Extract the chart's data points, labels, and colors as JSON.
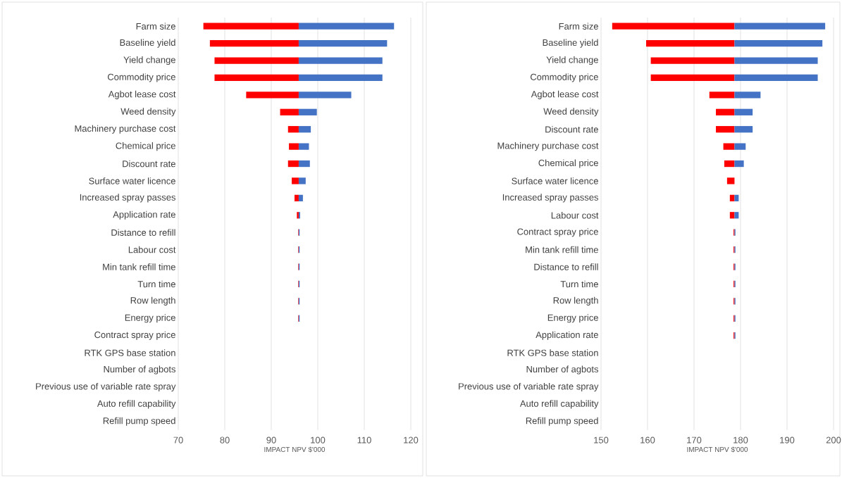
{
  "chart_data": [
    {
      "type": "bar",
      "orientation": "horizontal",
      "grid": "x",
      "xlabel": "IMPACT NPV $'000",
      "xlim": [
        70,
        120
      ],
      "xticks": [
        70,
        80,
        90,
        100,
        110,
        120
      ],
      "categories": [
        "Farm size",
        "Baseline yield",
        "Yield change",
        "Commodity price",
        "Agbot lease cost",
        "Weed density",
        "Machinery purchase cost",
        "Chemical price",
        "Discount rate",
        "Surface water licence",
        "Increased spray passes",
        "Application rate",
        "Distance to refill",
        "Labour cost",
        "Min tank refill time",
        "Turn time",
        "Row length",
        "Energy price",
        "Contract spray price",
        "RTK GPS base station",
        "Number of agbots",
        "Previous use of variable rate spray",
        "Auto refill capability",
        "Refill pump speed"
      ],
      "series": [
        {
          "color": "#ff0000",
          "base": [
            75.4,
            76.8,
            77.8,
            77.8,
            84.6,
            91.9,
            93.6,
            93.8,
            93.6,
            94.4,
            95.0,
            95.5,
            95.8,
            95.8,
            95.8,
            95.8,
            95.8,
            95.8,
            null,
            null,
            null,
            null,
            null,
            null
          ],
          "values": [
            20.5,
            19.1,
            18.1,
            18.1,
            11.3,
            4.0,
            2.3,
            2.1,
            2.3,
            1.5,
            0.9,
            0.4,
            0.1,
            0.1,
            0.1,
            0.1,
            0.1,
            0.1,
            null,
            null,
            null,
            null,
            null,
            null
          ]
        },
        {
          "color": "#4472c4",
          "base": [
            95.9,
            95.9,
            95.9,
            95.9,
            95.9,
            95.9,
            95.9,
            95.9,
            95.9,
            95.9,
            95.9,
            95.9,
            95.9,
            95.9,
            95.9,
            95.9,
            95.9,
            95.9,
            null,
            null,
            null,
            null,
            null,
            null
          ],
          "values": [
            20.5,
            19.0,
            18.0,
            18.0,
            11.3,
            3.9,
            2.6,
            2.2,
            2.4,
            1.5,
            0.9,
            0.3,
            0.2,
            0.2,
            0.2,
            0.2,
            0.2,
            0.2,
            null,
            null,
            null,
            null,
            null,
            null
          ]
        }
      ]
    },
    {
      "type": "bar",
      "orientation": "horizontal",
      "grid": "x",
      "xlabel": "IMPACT NPV $'000",
      "xlim": [
        150,
        200
      ],
      "xticks": [
        150,
        160,
        170,
        180,
        190,
        200
      ],
      "categories": [
        "Farm size",
        "Baseline yield",
        "Yield change",
        "Commodity price",
        "Agbot lease cost",
        "Weed density",
        "Discount rate",
        "Machinery purchase cost",
        "Chemical price",
        "Surface water licence",
        "Increased spray passes",
        "Labour cost",
        "Contract spray price",
        "Min tank refill time",
        "Distance to refill",
        "Turn time",
        "Row length",
        "Energy price",
        "Application rate",
        "RTK GPS base station",
        "Number of agbots",
        "Previous use of variable rate spray",
        "Auto refill capability",
        "Refill pump speed"
      ],
      "series": [
        {
          "color": "#ff0000",
          "base": [
            152.4,
            159.7,
            160.7,
            160.7,
            173.3,
            174.7,
            174.7,
            176.3,
            176.5,
            177.1,
            177.7,
            177.7,
            178.5,
            178.5,
            178.5,
            178.5,
            178.5,
            178.5,
            178.5,
            null,
            null,
            null,
            null,
            null
          ],
          "values": [
            26.3,
            19.0,
            18.0,
            18.0,
            5.4,
            4.0,
            4.0,
            2.4,
            2.2,
            1.6,
            1.0,
            1.0,
            0.2,
            0.2,
            0.2,
            0.2,
            0.2,
            0.2,
            0.2,
            null,
            null,
            null,
            null,
            null
          ]
        },
        {
          "color": "#4472c4",
          "base": [
            178.7,
            178.7,
            178.7,
            178.7,
            178.7,
            178.7,
            178.7,
            178.7,
            178.7,
            null,
            178.7,
            178.7,
            178.7,
            178.7,
            178.7,
            178.7,
            178.7,
            178.7,
            178.7,
            null,
            null,
            null,
            null,
            null
          ],
          "values": [
            19.5,
            18.9,
            17.9,
            17.9,
            5.6,
            3.9,
            3.9,
            2.4,
            2.0,
            null,
            0.9,
            0.9,
            0.2,
            0.2,
            0.2,
            0.2,
            0.2,
            0.2,
            0.2,
            null,
            null,
            null,
            null,
            null
          ]
        }
      ]
    }
  ]
}
